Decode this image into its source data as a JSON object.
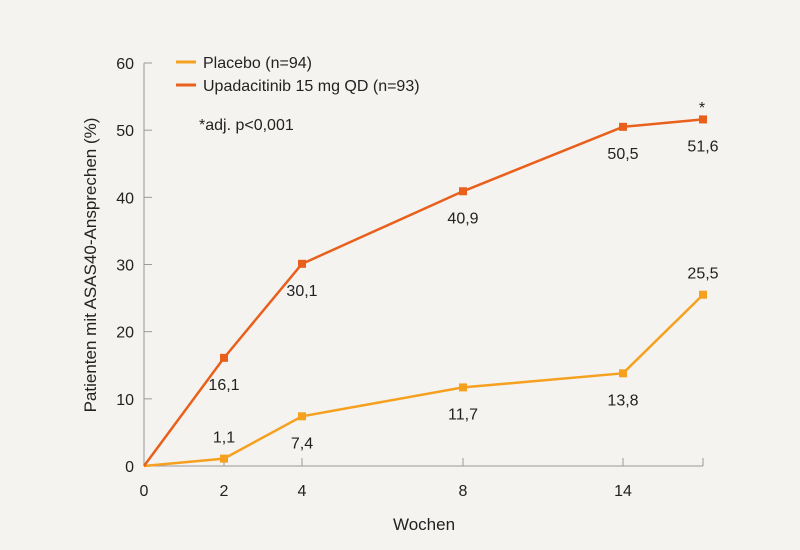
{
  "chart_data": {
    "type": "line",
    "xlabel": "Wochen",
    "ylabel": "Patienten mit ASAS40-Ansprechen (%)",
    "ylim": [
      0,
      60
    ],
    "yticks": [
      0,
      10,
      20,
      30,
      40,
      50,
      60
    ],
    "x_tick_labels": [
      "0",
      "2",
      "4",
      "8",
      "14"
    ],
    "grid": false,
    "legend": {
      "placement": "top-left"
    },
    "note": "*adj. p<0,001",
    "significance_marker": "*",
    "series": [
      {
        "name": "Placebo (n=94)",
        "color": "#f5a01f",
        "points": [
          {
            "x": 0,
            "y": 0,
            "label": ""
          },
          {
            "x": 2,
            "y": 1.1,
            "label": "1,1"
          },
          {
            "x": 4,
            "y": 7.4,
            "label": "7,4"
          },
          {
            "x": 8,
            "y": 11.7,
            "label": "11,7"
          },
          {
            "x": 14,
            "y": 13.8,
            "label": "13,8"
          },
          {
            "x": 16,
            "y": 25.5,
            "label": "25,5"
          }
        ]
      },
      {
        "name": "Upadacitinib 15 mg QD (n=93)",
        "color": "#e8601c",
        "points": [
          {
            "x": 0,
            "y": 0,
            "label": ""
          },
          {
            "x": 2,
            "y": 16.1,
            "label": "16,1"
          },
          {
            "x": 4,
            "y": 30.1,
            "label": "30,1"
          },
          {
            "x": 8,
            "y": 40.9,
            "label": "40,9"
          },
          {
            "x": 14,
            "y": 50.5,
            "label": "50,5"
          },
          {
            "x": 16,
            "y": 51.6,
            "label": "51,6"
          }
        ]
      }
    ]
  }
}
